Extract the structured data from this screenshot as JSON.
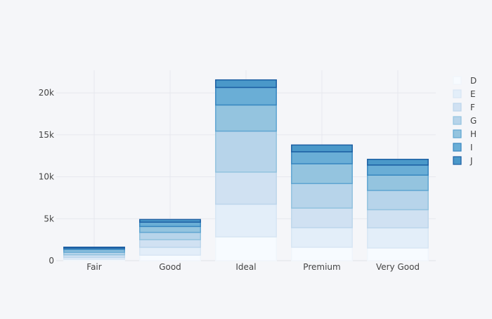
{
  "chart_data": {
    "type": "bar",
    "stacked": true,
    "categories": [
      "Fair",
      "Good",
      "Ideal",
      "Premium",
      "Very Good"
    ],
    "y_ticks": [
      {
        "value": 0,
        "label": "0"
      },
      {
        "value": 5000,
        "label": "5k"
      },
      {
        "value": 10000,
        "label": "10k"
      },
      {
        "value": 15000,
        "label": "15k"
      },
      {
        "value": 20000,
        "label": "20k"
      }
    ],
    "ylim": [
      0,
      22700
    ],
    "grid": true,
    "legend_position": "right",
    "series": [
      {
        "name": "D",
        "values": [
          163,
          662,
          2834,
          1603,
          1513
        ],
        "fill": "#f7fbff",
        "line": "#f0f5fb"
      },
      {
        "name": "E",
        "values": [
          224,
          933,
          3903,
          2337,
          2400
        ],
        "fill": "#e3eef9",
        "line": "#d8e6f4"
      },
      {
        "name": "F",
        "values": [
          312,
          909,
          3826,
          2331,
          2164
        ],
        "fill": "#d0e1f2",
        "line": "#bdd6ec"
      },
      {
        "name": "G",
        "values": [
          314,
          871,
          4884,
          2924,
          2299
        ],
        "fill": "#b7d4ea",
        "line": "#93c3df"
      },
      {
        "name": "H",
        "values": [
          303,
          702,
          3115,
          2360,
          1824
        ],
        "fill": "#94c4df",
        "line": "#60a6d2"
      },
      {
        "name": "I",
        "values": [
          175,
          522,
          2093,
          1428,
          1204
        ],
        "fill": "#6aaed6",
        "line": "#3887c0"
      },
      {
        "name": "J",
        "values": [
          119,
          307,
          896,
          808,
          678
        ],
        "fill": "#4a98c9",
        "line": "#1c5fa3"
      }
    ]
  }
}
